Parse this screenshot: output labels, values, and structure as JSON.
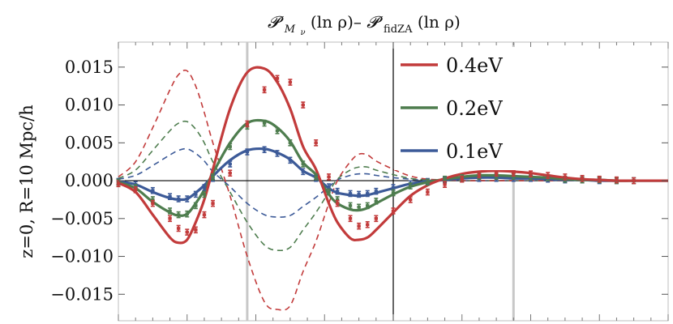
{
  "chart_data": {
    "type": "line",
    "title_parts": {
      "p1": "𝓟",
      "sub1": "M",
      "subsub1": "ν",
      "arg1": "(ln ρ)–",
      "p2": "𝓟",
      "sub2": "fidZA",
      "arg2": "(ln ρ)"
    },
    "ylabel": "z=0, R=10 Mpc/h",
    "ylim": [
      -0.0185,
      0.0183
    ],
    "yticks": [
      "0.015",
      "0.010",
      "0.005",
      "0.000",
      "−0.005",
      "−0.010",
      "−0.015"
    ],
    "ytick_values": [
      0.015,
      0.01,
      0.005,
      0.0,
      -0.005,
      -0.01,
      -0.015
    ],
    "grid": false,
    "legend_position": "top-right",
    "colors": {
      "0.4eV": "#c23b3b",
      "0.2eV": "#4e7d4e",
      "0.1eV": "#3c5a98",
      "axis": "#000000",
      "vline": "#c8c8c8"
    },
    "series": [
      {
        "name": "0.4eV",
        "color": "#c23b3b",
        "x": [
          0,
          20,
          40,
          60,
          70,
          80,
          90,
          100,
          110,
          130,
          150,
          170,
          185,
          200,
          215,
          230,
          245,
          255,
          270,
          280,
          290,
          300,
          320,
          340,
          360,
          380,
          400,
          420,
          440,
          460,
          480,
          500,
          520,
          540,
          560,
          580,
          600,
          640
        ],
        "solid": [
          -0.0003,
          -0.0015,
          -0.0045,
          -0.0075,
          -0.0082,
          -0.0078,
          -0.0055,
          -0.0025,
          0.0015,
          0.0095,
          0.0143,
          0.0148,
          0.013,
          0.0095,
          0.0045,
          0.0015,
          -0.003,
          -0.0055,
          -0.0076,
          -0.0078,
          -0.0075,
          -0.0065,
          -0.0042,
          -0.002,
          -0.0006,
          0.0003,
          0.0009,
          0.0012,
          0.0013,
          0.0012,
          0.001,
          0.0007,
          0.0004,
          0.0002,
          0.0001,
          0.0,
          0.0,
          0.0
        ],
        "dashed": [
          0.0005,
          0.0025,
          0.007,
          0.012,
          0.014,
          0.0145,
          0.0125,
          0.009,
          0.005,
          -0.002,
          -0.01,
          -0.016,
          -0.017,
          -0.0165,
          -0.012,
          -0.008,
          -0.003,
          0.0,
          0.0025,
          0.0035,
          0.0034,
          0.0026,
          0.0015,
          0.0006,
          0.0002,
          0.0001,
          0.0,
          0.0,
          0.0,
          0.0,
          0.0,
          0.0,
          0.0,
          0.0,
          0.0,
          0.0,
          0.0,
          0.0
        ],
        "points": [
          -0.0004,
          -0.0012,
          -0.003,
          -0.005,
          -0.0063,
          -0.0068,
          -0.0065,
          -0.0045,
          -0.003,
          0.001,
          0.0075,
          0.012,
          0.0135,
          0.013,
          0.01,
          0.005,
          0.0005,
          -0.003,
          -0.005,
          -0.006,
          -0.0058,
          -0.005,
          -0.004,
          -0.0025,
          -0.0015,
          -0.0005,
          0.0002,
          0.0008,
          0.001,
          0.001,
          0.0009,
          0.0007,
          0.0005,
          0.0003,
          0.0002,
          0.0001,
          0.0,
          0.0
        ]
      },
      {
        "name": "0.2eV",
        "color": "#4e7d4e",
        "x": [
          0,
          20,
          40,
          60,
          70,
          80,
          90,
          100,
          110,
          130,
          150,
          170,
          185,
          200,
          215,
          230,
          245,
          255,
          270,
          280,
          290,
          300,
          320,
          340,
          360,
          380,
          400,
          420,
          440,
          460,
          480,
          500,
          520,
          540,
          560,
          580,
          600,
          640
        ],
        "solid": [
          -0.0002,
          -0.001,
          -0.0028,
          -0.0042,
          -0.0046,
          -0.0044,
          -0.003,
          -0.0012,
          0.001,
          0.005,
          0.0076,
          0.0079,
          0.007,
          0.0052,
          0.0024,
          0.0008,
          -0.0018,
          -0.003,
          -0.0038,
          -0.0039,
          -0.0036,
          -0.003,
          -0.0018,
          -0.0008,
          -0.0002,
          0.0002,
          0.0005,
          0.0007,
          0.0007,
          0.0006,
          0.0005,
          0.0004,
          0.0002,
          0.0001,
          0.0001,
          0.0,
          0.0,
          0.0
        ],
        "dashed": [
          0.0003,
          0.0014,
          0.004,
          0.0066,
          0.0076,
          0.0078,
          0.0068,
          0.005,
          0.0025,
          -0.0015,
          -0.0055,
          -0.0085,
          -0.0092,
          -0.0088,
          -0.0065,
          -0.0042,
          -0.0015,
          0.0002,
          0.0014,
          0.0018,
          0.0018,
          0.0014,
          0.0008,
          0.0003,
          0.0001,
          0.0,
          0.0,
          0.0,
          0.0,
          0.0,
          0.0,
          0.0,
          0.0,
          0.0,
          0.0,
          0.0,
          0.0,
          0.0
        ],
        "points": [
          -0.0002,
          -0.0009,
          -0.0025,
          -0.004,
          -0.0045,
          -0.0044,
          -0.0033,
          -0.0018,
          0.0005,
          0.0045,
          0.0072,
          0.0076,
          0.0066,
          0.005,
          0.0022,
          0.0005,
          -0.0015,
          -0.0025,
          -0.0033,
          -0.0035,
          -0.0033,
          -0.0027,
          -0.0016,
          -0.0007,
          -0.0002,
          0.0002,
          0.0004,
          0.0006,
          0.0006,
          0.0006,
          0.0005,
          0.0004,
          0.0002,
          0.0001,
          0.0001,
          0.0,
          0.0,
          0.0
        ]
      },
      {
        "name": "0.1eV",
        "color": "#3c5a98",
        "x": [
          0,
          20,
          40,
          60,
          70,
          80,
          90,
          100,
          110,
          130,
          150,
          170,
          185,
          200,
          215,
          230,
          245,
          255,
          270,
          280,
          290,
          300,
          320,
          340,
          360,
          380,
          400,
          420,
          440,
          460,
          480,
          500,
          520,
          540,
          560,
          580,
          600,
          640
        ],
        "solid": [
          -0.0001,
          -0.0005,
          -0.0015,
          -0.0023,
          -0.0025,
          -0.0024,
          -0.0016,
          -0.0006,
          0.0006,
          0.0027,
          0.004,
          0.0042,
          0.0037,
          0.0028,
          0.0013,
          0.0004,
          -0.001,
          -0.0016,
          -0.0019,
          -0.002,
          -0.0019,
          -0.0016,
          -0.001,
          -0.0004,
          -0.0001,
          0.0001,
          0.0003,
          0.0004,
          0.0004,
          0.0003,
          0.0003,
          0.0002,
          0.0001,
          0.0001,
          0.0,
          0.0,
          0.0,
          0.0
        ],
        "dashed": [
          0.0002,
          0.0007,
          0.002,
          0.0034,
          0.004,
          0.0042,
          0.0036,
          0.0026,
          0.0012,
          -0.0008,
          -0.003,
          -0.0045,
          -0.0048,
          -0.0046,
          -0.0034,
          -0.0022,
          -0.0008,
          0.0001,
          0.0007,
          0.0009,
          0.0009,
          0.0007,
          0.0004,
          0.0002,
          0.0,
          0.0,
          0.0,
          0.0,
          0.0,
          0.0,
          0.0,
          0.0,
          0.0,
          0.0,
          0.0,
          0.0,
          0.0,
          0.0
        ],
        "points": [
          -0.0001,
          -0.0005,
          -0.0013,
          -0.0021,
          -0.0024,
          -0.0024,
          -0.0018,
          -0.0009,
          0.0003,
          0.0022,
          0.0038,
          0.0041,
          0.0036,
          0.0027,
          0.0012,
          0.0003,
          -0.0008,
          -0.0014,
          -0.0017,
          -0.0018,
          -0.0017,
          -0.0014,
          -0.0009,
          -0.0004,
          -0.0001,
          0.0001,
          0.0002,
          0.0003,
          0.0003,
          0.0003,
          0.0003,
          0.0002,
          0.0001,
          0.0001,
          0.0,
          0.0,
          0.0,
          0.0
        ]
      }
    ]
  }
}
